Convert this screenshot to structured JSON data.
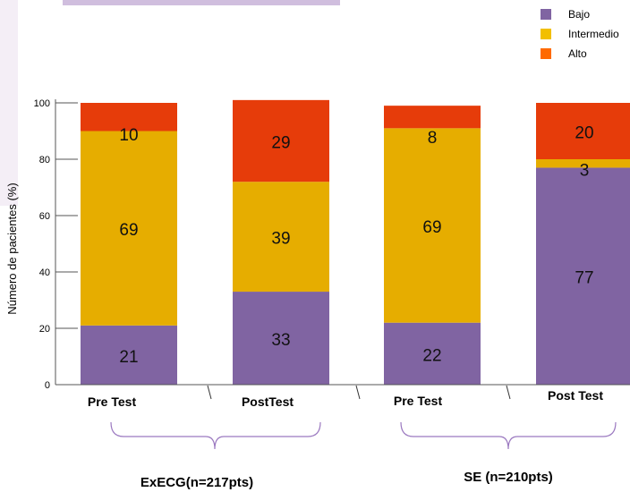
{
  "chart_data": {
    "type": "bar",
    "stacked": true,
    "title": "",
    "ylabel": "Número de pacientes  (%)",
    "ylim": [
      0,
      100
    ],
    "yticks": [
      0,
      20,
      40,
      60,
      80,
      100
    ],
    "categories": [
      "Pre Test",
      "PostTest",
      "Pre Test",
      "Post Test"
    ],
    "groups": [
      {
        "label": "ExECG(n=217pts)",
        "categories": [
          0,
          1
        ]
      },
      {
        "label": "SE (n=210pts)",
        "categories": [
          2,
          3
        ]
      }
    ],
    "series": [
      {
        "name": "Bajo",
        "color": "#8064a2",
        "values": [
          21,
          33,
          22,
          77
        ],
        "labels": [
          "21",
          "33",
          "22",
          "77"
        ]
      },
      {
        "name": "Intermedio",
        "color": "#e6ad00",
        "values": [
          69,
          39,
          69,
          3
        ],
        "labels": [
          "69",
          "39",
          "69",
          "3"
        ]
      },
      {
        "name": "Alto",
        "color": "#e63c0a",
        "values": [
          10,
          29,
          8,
          20
        ],
        "labels": [
          "10",
          "29",
          "8",
          "20"
        ]
      }
    ],
    "legend": {
      "position": "top-right",
      "colors": [
        "#8064a2",
        "#f2bf00",
        "#ff6a00"
      ]
    },
    "grid": false
  }
}
